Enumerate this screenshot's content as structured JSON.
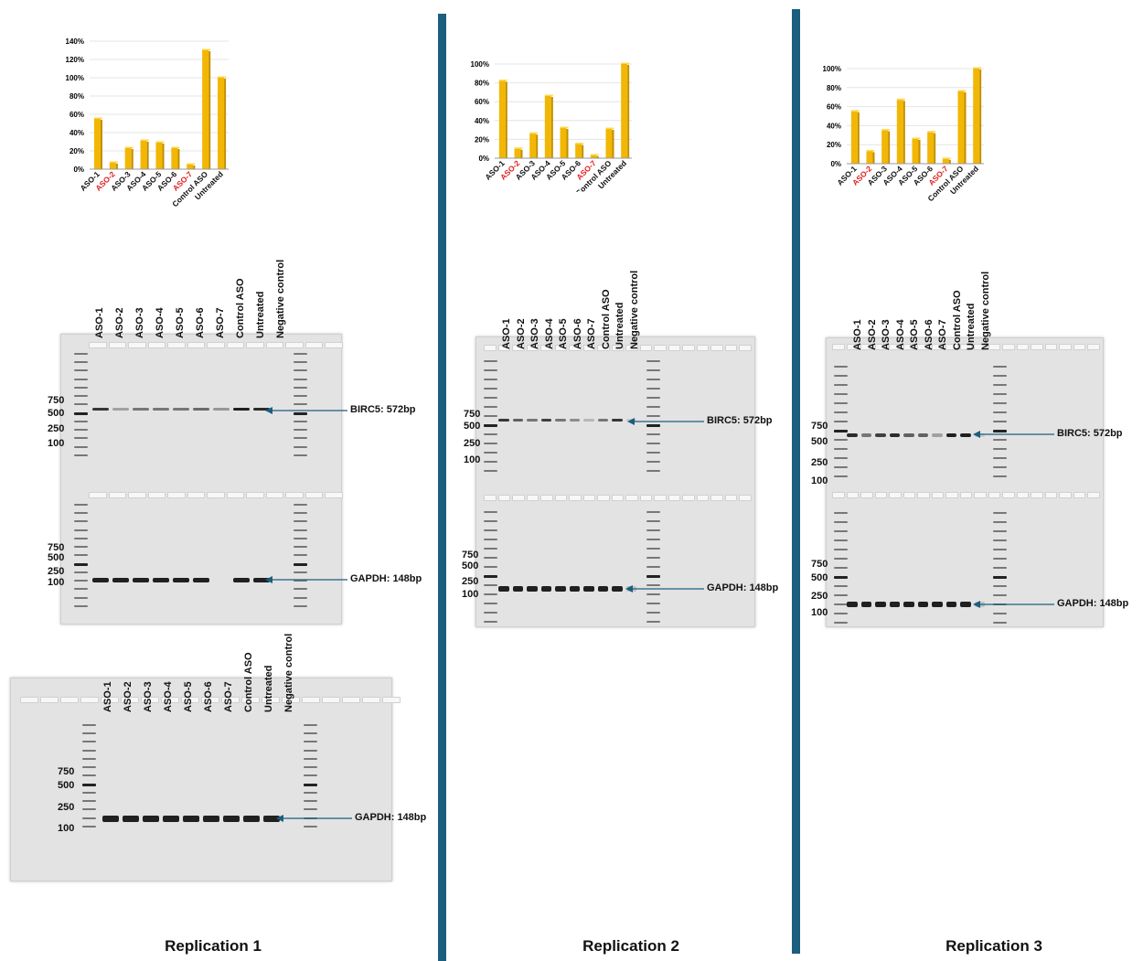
{
  "categories": [
    "ASO-1",
    "ASO-2",
    "ASO-3",
    "ASO-4",
    "ASO-5",
    "ASO-6",
    "ASO-7",
    "Control ASO",
    "Untreated"
  ],
  "highlighted_categories": [
    "ASO-2",
    "ASO-7"
  ],
  "colors": {
    "bar": "#f2b705",
    "highlight": "#e02020",
    "divider": "#1b5e7e",
    "gel": "#e3e3e3"
  },
  "chart_data": [
    {
      "type": "bar",
      "title": "",
      "categories": [
        "ASO-1",
        "ASO-2",
        "ASO-3",
        "ASO-4",
        "ASO-5",
        "ASO-6",
        "ASO-7",
        "Control ASO",
        "Untreated"
      ],
      "values": [
        55,
        7,
        23,
        31,
        29,
        23,
        5,
        130,
        100
      ],
      "ylim": [
        0,
        140
      ],
      "yticks": [
        "0%",
        "20%",
        "40%",
        "60%",
        "80%",
        "100%",
        "120%",
        "140%"
      ],
      "ytick_values": [
        0,
        20,
        40,
        60,
        80,
        100,
        120,
        140
      ]
    },
    {
      "type": "bar",
      "title": "",
      "categories": [
        "ASO-1",
        "ASO-2",
        "ASO-3",
        "ASO-4",
        "ASO-5",
        "ASO-6",
        "ASO-7",
        "Control ASO",
        "Untreated"
      ],
      "values": [
        82,
        10,
        26,
        66,
        32,
        15,
        3,
        31,
        100
      ],
      "ylim": [
        0,
        100
      ],
      "yticks": [
        "0%",
        "20%",
        "40%",
        "60%",
        "80%",
        "100%"
      ],
      "ytick_values": [
        0,
        20,
        40,
        60,
        80,
        100
      ]
    },
    {
      "type": "bar",
      "title": "",
      "categories": [
        "ASO-1",
        "ASO-2",
        "ASO-3",
        "ASO-4",
        "ASO-5",
        "ASO-6",
        "ASO-7",
        "Control ASO",
        "Untreated"
      ],
      "values": [
        55,
        13,
        35,
        67,
        26,
        33,
        5,
        76,
        100
      ],
      "ylim": [
        0,
        100
      ],
      "yticks": [
        "0%",
        "20%",
        "40%",
        "60%",
        "80%",
        "100%"
      ],
      "ytick_values": [
        0,
        20,
        40,
        60,
        80,
        100
      ]
    }
  ],
  "gel_lanes": [
    "ASO-1",
    "ASO-2",
    "ASO-3",
    "ASO-4",
    "ASO-5",
    "ASO-6",
    "ASO-7",
    "Control ASO",
    "Untreated",
    "Negative control"
  ],
  "gel_lanes_rep1_bottom": [
    "ASO-1",
    "ASO-2",
    "ASO-3",
    "ASO-4",
    "ASO-5",
    "ASO-6",
    "ASO-7",
    "Control ASO",
    "Untreated",
    "Negative control"
  ],
  "ladder": {
    "b750": "750",
    "b500": "500",
    "b250": "250",
    "b100": "100"
  },
  "bands": {
    "birc5": "BIRC5: 572bp",
    "gapdh": "GAPDH: 148bp"
  },
  "captions": {
    "rep1": "Replication 1",
    "rep2": "Replication 2",
    "rep3": "Replication 3"
  }
}
